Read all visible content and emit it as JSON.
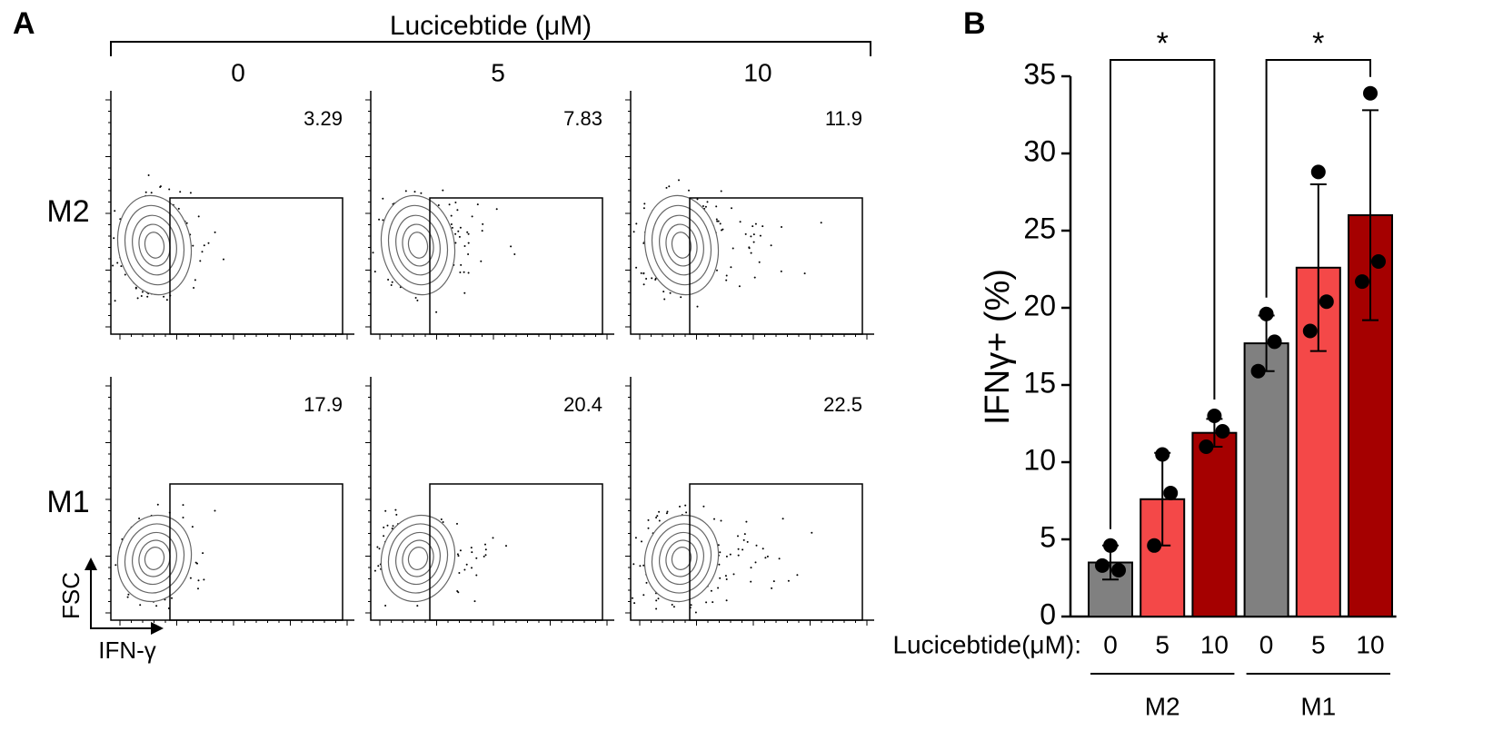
{
  "panel_a": {
    "label": "A",
    "title": "Lucicebtide (μM)",
    "columns": [
      "0",
      "5",
      "10"
    ],
    "rows": [
      {
        "name": "M2",
        "values": [
          3.29,
          7.83,
          11.9
        ]
      },
      {
        "name": "M1",
        "values": [
          17.9,
          20.4,
          22.5
        ]
      }
    ],
    "x_axis_label": "IFN-γ",
    "y_axis_label": "FSC"
  },
  "chart_data": {
    "type": "bar",
    "panel_label": "B",
    "y_label": "IFNγ+ (%)",
    "x_prefix": "Lucicebtide(μM):",
    "categories": [
      "0",
      "5",
      "10",
      "0",
      "5",
      "10"
    ],
    "groups": [
      "M2",
      "M1"
    ],
    "values": [
      3.5,
      7.6,
      11.9,
      17.7,
      22.6,
      26.0
    ],
    "errors": [
      1.1,
      3.0,
      0.9,
      1.8,
      5.4,
      6.8
    ],
    "points": [
      [
        4.6,
        3.0,
        3.3
      ],
      [
        10.5,
        8.0,
        4.6
      ],
      [
        13.0,
        12.0,
        11.0
      ],
      [
        19.6,
        17.8,
        15.9
      ],
      [
        28.8,
        20.4,
        18.5
      ],
      [
        33.9,
        23.0,
        21.7
      ]
    ],
    "colors": [
      "#808080",
      "#f44848",
      "#a50000",
      "#808080",
      "#f44848",
      "#a50000"
    ],
    "significance": [
      "*",
      "*"
    ],
    "ylim": [
      0,
      35
    ],
    "yticks": [
      0,
      5,
      10,
      15,
      20,
      25,
      30,
      35
    ]
  }
}
